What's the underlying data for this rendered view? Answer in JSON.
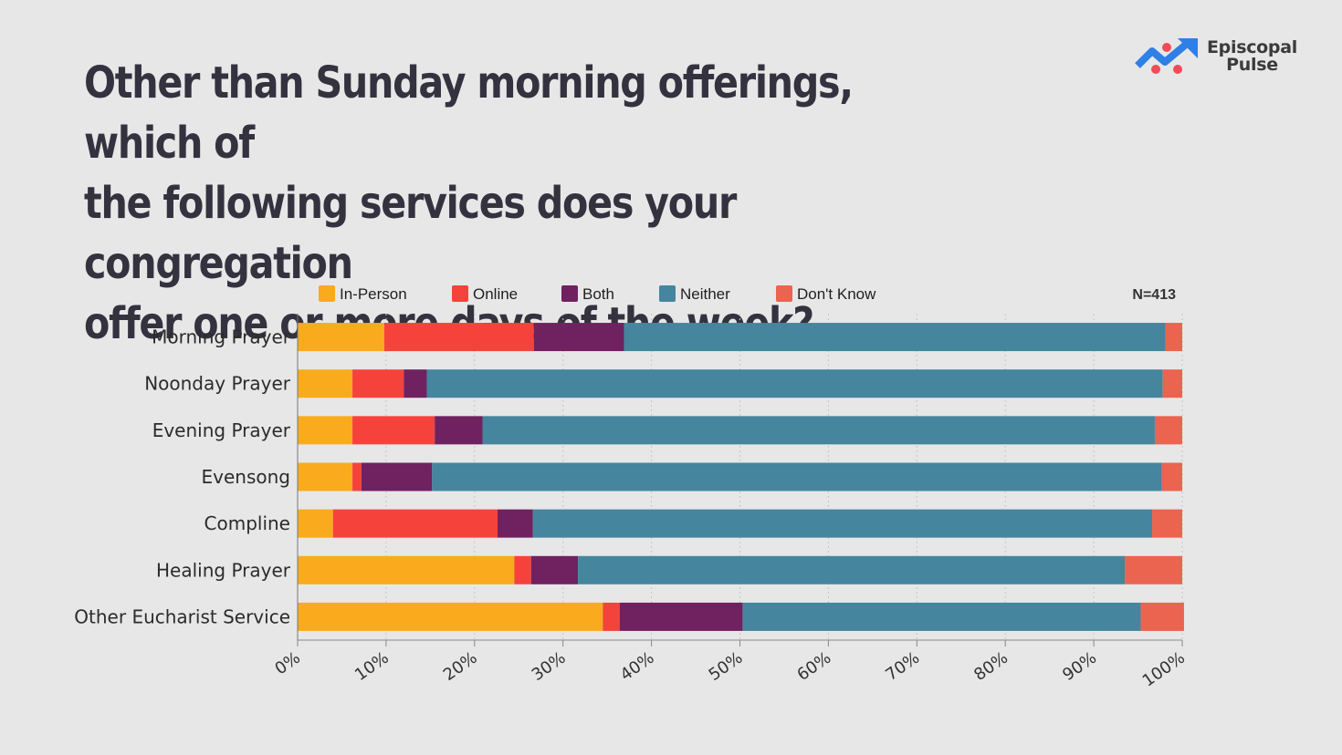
{
  "header": {
    "title_lines": [
      "Other than Sunday morning offerings, which of",
      "the following services does your congregation",
      "offer one or more days of the week?"
    ]
  },
  "logo": {
    "icon": "trend-arrow-logo-icon",
    "line1": "Episcopal",
    "line2": "Pulse",
    "colors": {
      "arrow": "#2f7fe6",
      "dots": "#f24b57"
    }
  },
  "chart_data": {
    "type": "bar",
    "orientation": "horizontal",
    "stacked": true,
    "sample_size": "N=413",
    "categories": [
      "Morning Prayer",
      "Noonday Prayer",
      "Evening Prayer",
      "Evensong",
      "Compline",
      "Healing Prayer",
      "Other Eucharist Service"
    ],
    "series": [
      {
        "name": "In-Person",
        "color": "#f9ab1d",
        "values": [
          9.8,
          6.2,
          6.2,
          6.2,
          4.0,
          24.5,
          34.5
        ]
      },
      {
        "name": "Online",
        "color": "#f5433b",
        "values": [
          16.9,
          5.8,
          9.3,
          1.0,
          18.6,
          1.9,
          1.9
        ]
      },
      {
        "name": "Both",
        "color": "#6f2160",
        "values": [
          10.2,
          2.6,
          5.4,
          8.0,
          4.0,
          5.3,
          13.9
        ]
      },
      {
        "name": "Neither",
        "color": "#45859e",
        "values": [
          61.2,
          83.2,
          76.0,
          82.5,
          70.0,
          61.8,
          45.0
        ]
      },
      {
        "name": "Don't Know",
        "color": "#ea6450",
        "values": [
          1.9,
          2.2,
          3.1,
          2.3,
          3.4,
          6.5,
          4.9
        ]
      }
    ],
    "x_axis": {
      "range": [
        0,
        100
      ],
      "ticks": [
        "0%",
        "10%",
        "20%",
        "30%",
        "40%",
        "50%",
        "60%",
        "70%",
        "80%",
        "90%",
        "100%"
      ],
      "grid": true
    },
    "legend_position": "top"
  }
}
